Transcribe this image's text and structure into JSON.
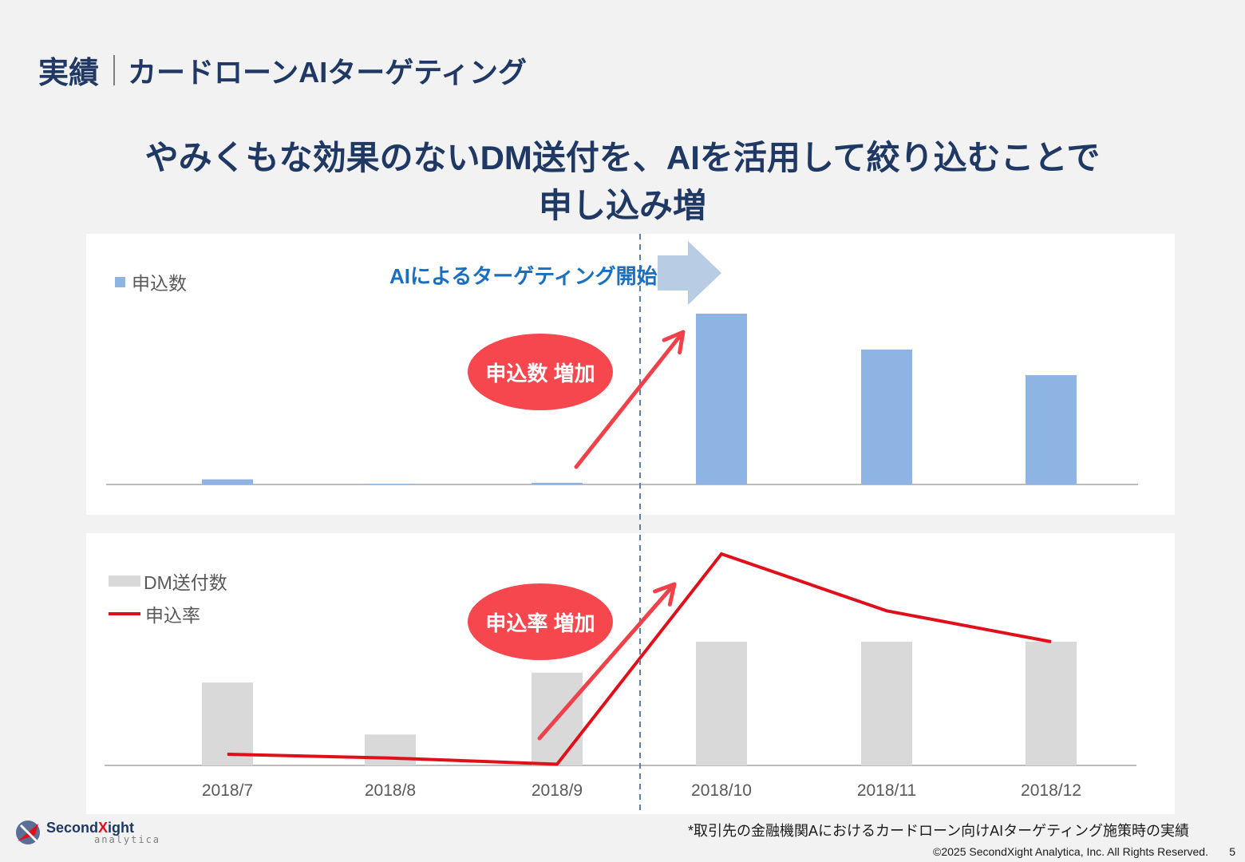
{
  "header": {
    "title": "実績",
    "subtitle": "カードローンAIターゲティング"
  },
  "headline": {
    "line1": "やみくもな効果のないDM送付を、AIを活用して絞り込むことで",
    "line2": "申し込み増"
  },
  "annotations": {
    "ai_start": "AIによるターゲティング開始",
    "apps_increase": "申込数 増加",
    "rate_increase": "申込率 増加"
  },
  "colors": {
    "apps_bar": "#8eb4e3",
    "dm_bar": "#d9d9d9",
    "rate_line": "#e0101a",
    "bubble": "#f5474d",
    "arrow": "#ef4149",
    "divider": "#5b7fa6"
  },
  "chart_data": [
    {
      "type": "bar",
      "categories": [
        "2018/7",
        "2018/8",
        "2018/9",
        "2018/10",
        "2018/11",
        "2018/12"
      ],
      "series": [
        {
          "name": "申込数",
          "values": [
            3,
            0,
            1,
            100,
            79,
            64
          ]
        }
      ],
      "ylim": [
        0,
        100
      ],
      "legend": "top-left"
    },
    {
      "type": "bar",
      "categories": [
        "2018/7",
        "2018/8",
        "2018/9",
        "2018/10",
        "2018/11",
        "2018/12"
      ],
      "series": [
        {
          "name": "DM送付数",
          "type": "bar",
          "values": [
            67,
            25,
            75,
            100,
            100,
            100
          ]
        },
        {
          "name": "申込率",
          "type": "line",
          "values": [
            9,
            6,
            1,
            171,
            125,
            100
          ]
        }
      ],
      "ylim": [
        0,
        200
      ],
      "legend": "top-left"
    }
  ],
  "footer": {
    "footnote": "*取引先の金融機関Aにおけるカードローン向けAIターゲティング施策時の実績",
    "copyright": "©2025 SecondXight Analytica, Inc. All Rights Reserved.",
    "page": "5",
    "logo_main_a": "Second",
    "logo_main_x": "X",
    "logo_main_b": "ight",
    "logo_sub": "analytica"
  }
}
